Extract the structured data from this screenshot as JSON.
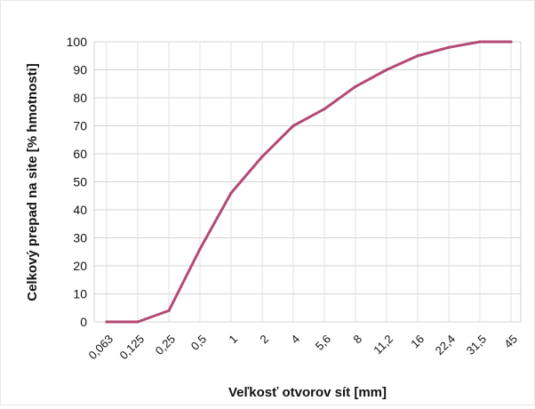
{
  "chart_data": {
    "type": "line",
    "title": "",
    "xlabel": "Veľkosť otvorov sít [mm]",
    "ylabel": "Celkový prepad na site [% hmotnosti]",
    "categories": [
      "0,063",
      "0,125",
      "0,25",
      "0,5",
      "1",
      "2",
      "4",
      "5,6",
      "8",
      "11,2",
      "16",
      "22,4",
      "31,5",
      "45"
    ],
    "y_ticks": [
      "0",
      "10",
      "20",
      "30",
      "40",
      "50",
      "60",
      "70",
      "80",
      "90",
      "100"
    ],
    "ylim": [
      0,
      100
    ],
    "grid": true,
    "legend": "none",
    "series": [
      {
        "values": [
          0,
          0,
          4,
          26,
          46,
          59,
          70,
          76,
          84,
          90,
          95,
          98,
          100,
          100
        ],
        "color": "#b44a76"
      }
    ]
  }
}
